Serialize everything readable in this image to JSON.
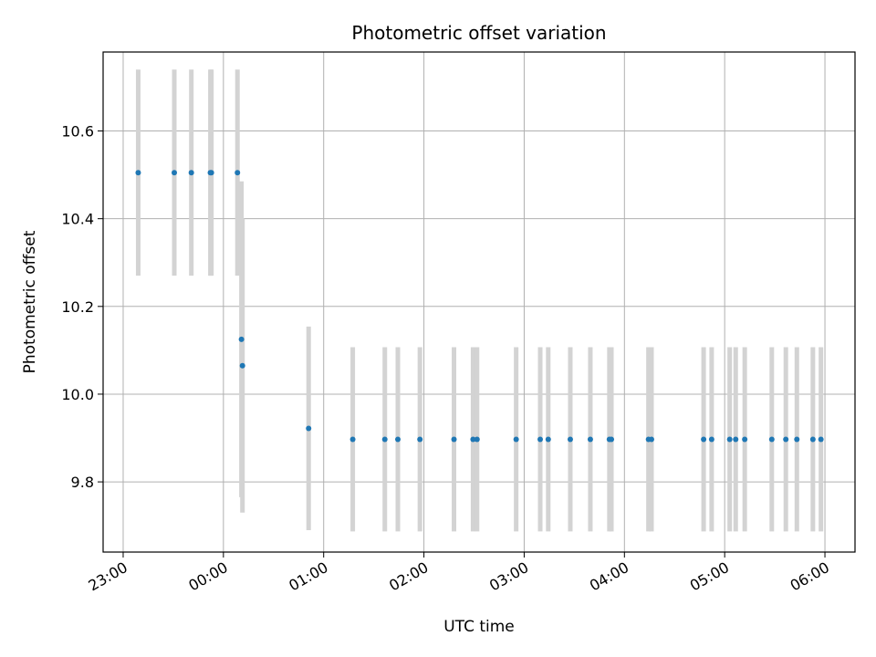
{
  "chart_data": {
    "type": "scatter",
    "title": "Photometric offset variation",
    "xlabel": "UTC time",
    "ylabel": "Photometric offset",
    "x_tick_labels": [
      "23:00",
      "00:00",
      "01:00",
      "02:00",
      "03:00",
      "04:00",
      "05:00",
      "06:00"
    ],
    "x_ticks_hours": [
      -1,
      0,
      1,
      2,
      3,
      4,
      5,
      6
    ],
    "y_ticks": [
      9.8,
      10.0,
      10.2,
      10.4,
      10.6
    ],
    "y_tick_labels": [
      "9.8",
      "10.0",
      "10.2",
      "10.4",
      "10.6"
    ],
    "xlim_hours": [
      -1.2,
      6.3
    ],
    "ylim": [
      9.64,
      10.78
    ],
    "grid": true,
    "point_color": "#1f77b4",
    "errorbar_color": "#d3d3d3",
    "points": [
      {
        "t": -0.85,
        "y": 10.505,
        "err": 0.235
      },
      {
        "t": -0.49,
        "y": 10.505,
        "err": 0.235
      },
      {
        "t": -0.32,
        "y": 10.505,
        "err": 0.235
      },
      {
        "t": -0.13,
        "y": 10.505,
        "err": 0.235
      },
      {
        "t": -0.12,
        "y": 10.505,
        "err": 0.235
      },
      {
        "t": 0.14,
        "y": 10.505,
        "err": 0.235
      },
      {
        "t": 0.18,
        "y": 10.125,
        "err": 0.36
      },
      {
        "t": 0.19,
        "y": 10.065,
        "err": 0.335
      },
      {
        "t": 0.85,
        "y": 9.922,
        "err": 0.232
      },
      {
        "t": 1.29,
        "y": 9.897,
        "err": 0.21
      },
      {
        "t": 1.61,
        "y": 9.897,
        "err": 0.21
      },
      {
        "t": 1.74,
        "y": 9.897,
        "err": 0.21
      },
      {
        "t": 1.96,
        "y": 9.897,
        "err": 0.21
      },
      {
        "t": 2.3,
        "y": 9.897,
        "err": 0.21
      },
      {
        "t": 2.49,
        "y": 9.897,
        "err": 0.21
      },
      {
        "t": 2.53,
        "y": 9.897,
        "err": 0.21
      },
      {
        "t": 2.92,
        "y": 9.897,
        "err": 0.21
      },
      {
        "t": 3.16,
        "y": 9.897,
        "err": 0.21
      },
      {
        "t": 3.24,
        "y": 9.897,
        "err": 0.21
      },
      {
        "t": 3.46,
        "y": 9.897,
        "err": 0.21
      },
      {
        "t": 3.66,
        "y": 9.897,
        "err": 0.21
      },
      {
        "t": 3.85,
        "y": 9.897,
        "err": 0.21
      },
      {
        "t": 3.87,
        "y": 9.897,
        "err": 0.21
      },
      {
        "t": 4.24,
        "y": 9.897,
        "err": 0.21
      },
      {
        "t": 4.27,
        "y": 9.897,
        "err": 0.21
      },
      {
        "t": 4.79,
        "y": 9.897,
        "err": 0.21
      },
      {
        "t": 4.87,
        "y": 9.897,
        "err": 0.21
      },
      {
        "t": 5.05,
        "y": 9.897,
        "err": 0.21
      },
      {
        "t": 5.11,
        "y": 9.897,
        "err": 0.21
      },
      {
        "t": 5.2,
        "y": 9.897,
        "err": 0.21
      },
      {
        "t": 5.47,
        "y": 9.897,
        "err": 0.21
      },
      {
        "t": 5.61,
        "y": 9.897,
        "err": 0.21
      },
      {
        "t": 5.72,
        "y": 9.897,
        "err": 0.21
      },
      {
        "t": 5.88,
        "y": 9.897,
        "err": 0.21
      },
      {
        "t": 5.96,
        "y": 9.897,
        "err": 0.21
      }
    ]
  }
}
